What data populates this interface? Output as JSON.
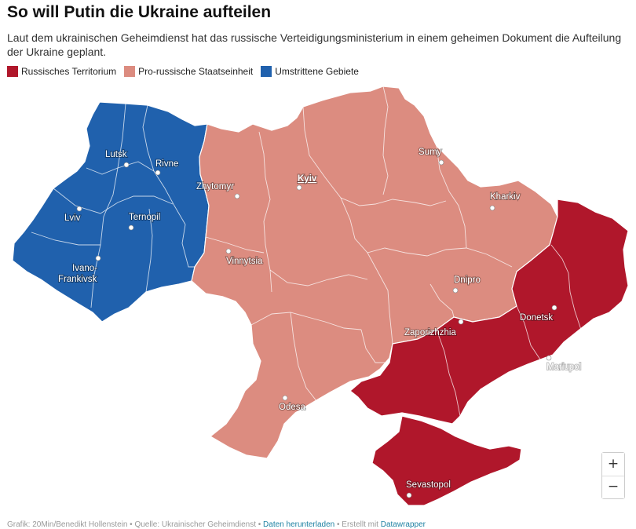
{
  "title": "So will Putin die Ukraine aufteilen",
  "subtitle": "Laut dem ukrainischen Geheimdienst hat das russische Verteidigungsministerium in einem geheimen Dokument die Aufteilung der Ukraine geplant.",
  "legend": [
    {
      "label": "Russisches Territorium",
      "color": "#b0172b"
    },
    {
      "label": "Pro-russische Staatseinheit",
      "color": "#dc8c80"
    },
    {
      "label": "Umstrittene Gebiete",
      "color": "#2061ad"
    }
  ],
  "cities": {
    "lutsk": "Lutsk",
    "rivne": "Rivne",
    "lviv": "Lviv",
    "ternopil": "Ternopil",
    "ivano1": "Ivano-",
    "ivano2": "Frankivsk",
    "zhytomyr": "Zhytomyr",
    "kyiv": "Kyiv",
    "sumy": "Sumy",
    "kharkiv": "Kharkiv",
    "vinnytsia": "Vinnytsia",
    "dnipro": "Dnipro",
    "zaporizhzhia": "Zaporizhzhia",
    "donetsk": "Donetsk",
    "mariupol": "Mariupol",
    "odesa": "Odesa",
    "sevastopol": "Sevastopol"
  },
  "zoom": {
    "in": "+",
    "out": "−"
  },
  "footer": {
    "credit": "Grafik: 20Min/Benedikt Hollenstein • Quelle: Ukrainischer Geheimdienst • ",
    "download": "Daten herunterladen",
    "separator": " • Erstellt mit ",
    "tool": "Datawrapper"
  }
}
